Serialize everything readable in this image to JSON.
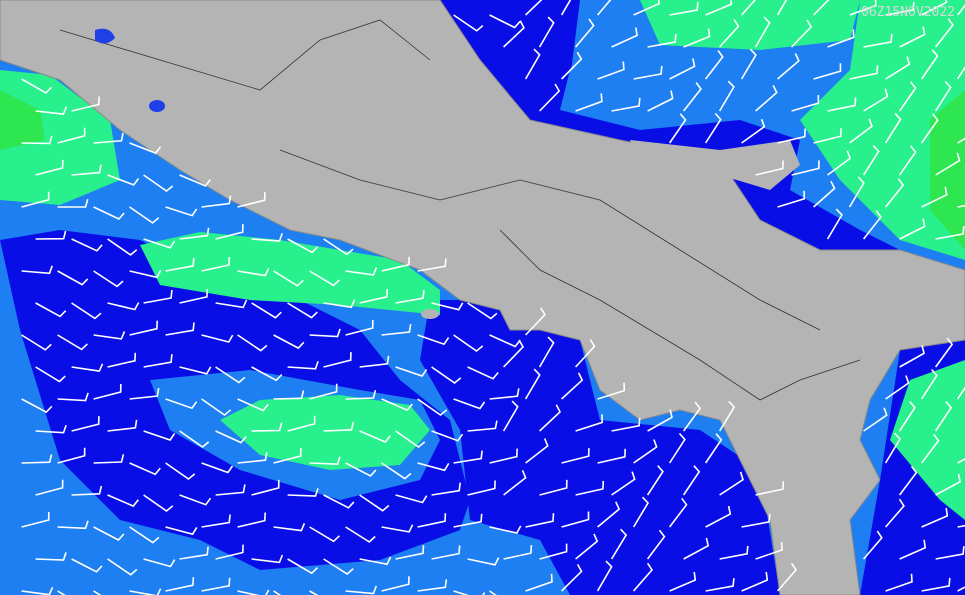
{
  "map": {
    "timestamp": "06Z15NOV2022"
  }
}
